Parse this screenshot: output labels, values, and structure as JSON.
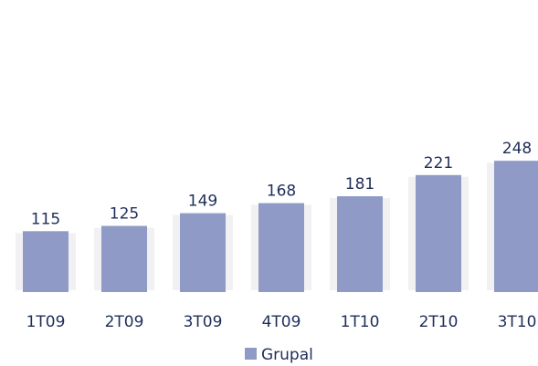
{
  "chart_data": {
    "type": "bar",
    "categories": [
      "1T09",
      "2T09",
      "3T09",
      "4T09",
      "1T10",
      "2T10",
      "3T10"
    ],
    "series": [
      {
        "name": "Grupal",
        "color": "#8f9ac6",
        "values": [
          115,
          125,
          149,
          168,
          181,
          221,
          248
        ]
      }
    ],
    "ylim": [
      0,
      300
    ],
    "legend": "bottom"
  }
}
